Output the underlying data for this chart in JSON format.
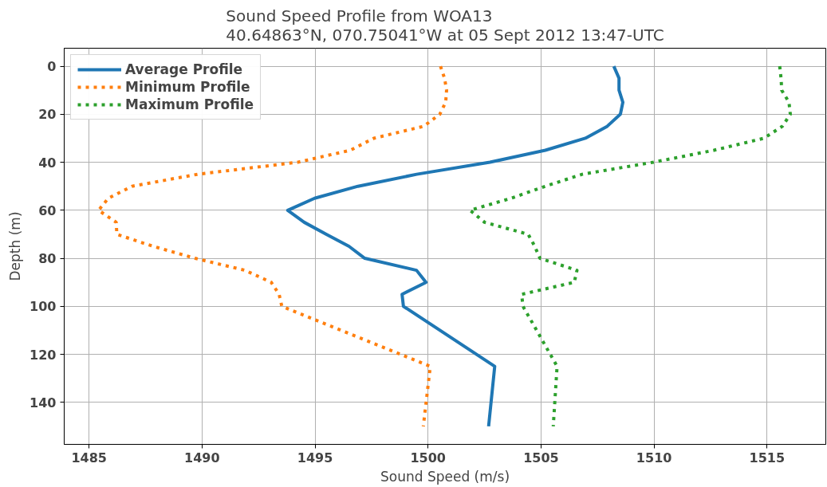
{
  "chart_data": {
    "type": "line",
    "title": "Sound Speed Profile from WOA13\n40.64863°N, 070.75041°W at 05 Sept 2012 13:47-UTC",
    "xlabel": "Sound Speed (m/s)",
    "ylabel": "Depth (m)",
    "orientation": "horizontal",
    "x": [
      0,
      5,
      10,
      15,
      20,
      25,
      30,
      35,
      40,
      45,
      50,
      55,
      60,
      65,
      70,
      75,
      80,
      85,
      90,
      95,
      100,
      125,
      150
    ],
    "series": [
      {
        "name": "Average Profile",
        "color": "#1f77b4",
        "line_style": "solid",
        "values": [
          1508.22,
          1508.45,
          1508.45,
          1508.62,
          1508.51,
          1507.93,
          1506.96,
          1505.19,
          1502.74,
          1499.5,
          1496.9,
          1494.98,
          1493.79,
          1494.52,
          1495.5,
          1496.5,
          1497.2,
          1499.49,
          1499.91,
          1498.85,
          1498.91,
          1502.95,
          1502.68
        ]
      },
      {
        "name": "Minimum Profile",
        "color": "#ff7f0e",
        "line_style": "dotted",
        "values": [
          1500.55,
          1500.73,
          1500.82,
          1500.78,
          1500.52,
          1499.81,
          1497.6,
          1496.56,
          1494.23,
          1489.8,
          1486.9,
          1485.85,
          1485.42,
          1486.2,
          1486.23,
          1487.83,
          1489.69,
          1491.9,
          1493.06,
          1493.41,
          1493.53,
          1500.1,
          1499.79
        ]
      },
      {
        "name": "Maximum Profile",
        "color": "#2ca02c",
        "line_style": "dotted",
        "values": [
          1515.56,
          1515.62,
          1515.65,
          1515.97,
          1516.03,
          1515.68,
          1514.86,
          1512.65,
          1509.97,
          1506.82,
          1505.19,
          1503.67,
          1501.86,
          1502.5,
          1504.43,
          1504.72,
          1504.95,
          1506.59,
          1506.47,
          1504.14,
          1504.2,
          1505.71,
          1505.54
        ]
      }
    ],
    "xlim": [
      1483.9,
      1517.6
    ],
    "xticks": [
      1485,
      1490,
      1495,
      1500,
      1505,
      1510,
      1515
    ],
    "ylim": [
      157.5,
      -7.5
    ],
    "yticks": [
      0,
      20,
      40,
      60,
      80,
      100,
      120,
      140
    ],
    "grid": true,
    "legend": "top left",
    "marker": "none"
  }
}
